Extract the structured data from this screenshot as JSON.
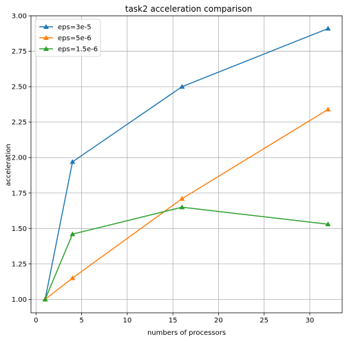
{
  "chart_data": {
    "type": "line",
    "title": "task2 acceleration comparison",
    "xlabel": "numbers of processors",
    "ylabel": "acceleration",
    "xlim": [
      -0.55,
      33.55
    ],
    "ylim": [
      0.905,
      3.0
    ],
    "xticks": [
      0,
      5,
      10,
      15,
      20,
      25,
      30
    ],
    "xtick_labels": [
      "0",
      "5",
      "10",
      "15",
      "20",
      "25",
      "30"
    ],
    "yticks": [
      1.0,
      1.25,
      1.5,
      1.75,
      2.0,
      2.25,
      2.5,
      2.75,
      3.0
    ],
    "ytick_labels": [
      "1.00",
      "1.25",
      "1.50",
      "1.75",
      "2.00",
      "2.25",
      "2.50",
      "2.75",
      "3.00"
    ],
    "grid": true,
    "legend_position": "top-left",
    "marker": "triangle-up",
    "x": [
      1,
      4,
      16,
      32
    ],
    "series": [
      {
        "name": "eps=3e-5",
        "color": "#1f77b4",
        "values": [
          1.0,
          1.97,
          2.5,
          2.91
        ]
      },
      {
        "name": "eps=5e-6",
        "color": "#ff7f0e",
        "values": [
          1.0,
          1.15,
          1.71,
          2.34
        ]
      },
      {
        "name": "eps=1.5e-6",
        "color": "#2ca02c",
        "values": [
          1.0,
          1.46,
          1.65,
          1.53
        ]
      }
    ]
  }
}
